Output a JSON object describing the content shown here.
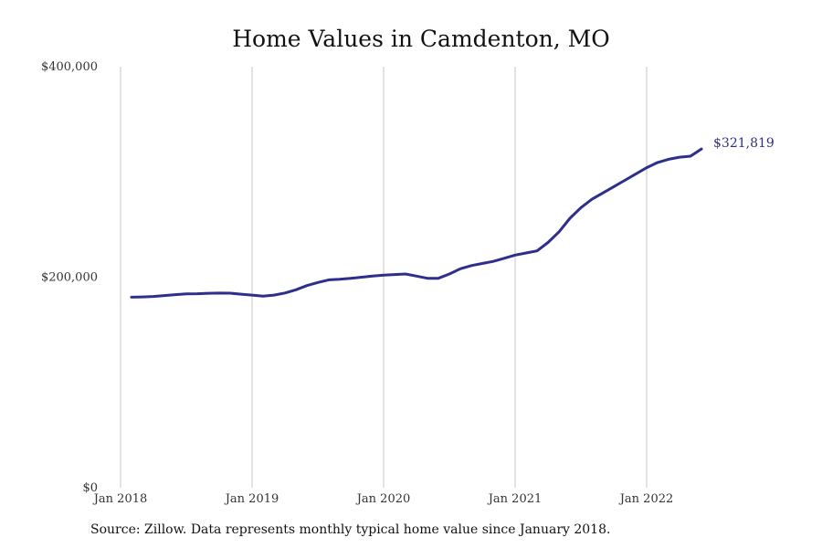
{
  "chart_data": {
    "type": "line",
    "title": "Home Values in Camdenton, MO",
    "xlabel": "",
    "ylabel": "",
    "ylim": [
      0,
      400000
    ],
    "xlim": [
      "2018-01",
      "2022-12"
    ],
    "grid": {
      "vertical": true,
      "horizontal": false
    },
    "y_ticks": [
      {
        "value": 0,
        "label": "$0"
      },
      {
        "value": 200000,
        "label": "$200,000"
      },
      {
        "value": 400000,
        "label": "$400,000"
      }
    ],
    "x_ticks": [
      {
        "value": "2018-01",
        "label": "Jan 2018"
      },
      {
        "value": "2019-01",
        "label": "Jan 2019"
      },
      {
        "value": "2020-01",
        "label": "Jan 2020"
      },
      {
        "value": "2021-01",
        "label": "Jan 2021"
      },
      {
        "value": "2022-01",
        "label": "Jan 2022"
      }
    ],
    "series": [
      {
        "color": "#2e2e8c",
        "end_label": "$321,819",
        "x": [
          "2018-02",
          "2018-03",
          "2018-04",
          "2018-05",
          "2018-06",
          "2018-07",
          "2018-08",
          "2018-09",
          "2018-10",
          "2018-11",
          "2018-12",
          "2019-01",
          "2019-02",
          "2019-03",
          "2019-04",
          "2019-05",
          "2019-06",
          "2019-07",
          "2019-08",
          "2019-09",
          "2019-10",
          "2019-11",
          "2019-12",
          "2020-01",
          "2020-02",
          "2020-03",
          "2020-04",
          "2020-05",
          "2020-06",
          "2020-07",
          "2020-08",
          "2020-09",
          "2020-10",
          "2020-11",
          "2020-12",
          "2021-01",
          "2021-02",
          "2021-03",
          "2021-04",
          "2021-05",
          "2021-06",
          "2021-07",
          "2021-08",
          "2021-09",
          "2021-10",
          "2021-11",
          "2021-12",
          "2022-01",
          "2022-02",
          "2022-03",
          "2022-04",
          "2022-05",
          "2022-06"
        ],
        "values": [
          181000,
          181300,
          181700,
          182600,
          183400,
          184100,
          184300,
          184700,
          184900,
          184800,
          183900,
          183000,
          182000,
          183000,
          185000,
          188000,
          192000,
          195000,
          197500,
          198000,
          199000,
          200000,
          201000,
          202000,
          202500,
          203000,
          201000,
          199000,
          199000,
          203000,
          208000,
          211000,
          213000,
          215000,
          218000,
          221000,
          223000,
          225000,
          233000,
          243000,
          256000,
          266000,
          274000,
          280000,
          286000,
          292000,
          298000,
          304000,
          309000,
          312000,
          314000,
          315000,
          321819
        ]
      }
    ]
  },
  "source_note": "Source: Zillow. Data represents monthly typical home value since January 2018."
}
